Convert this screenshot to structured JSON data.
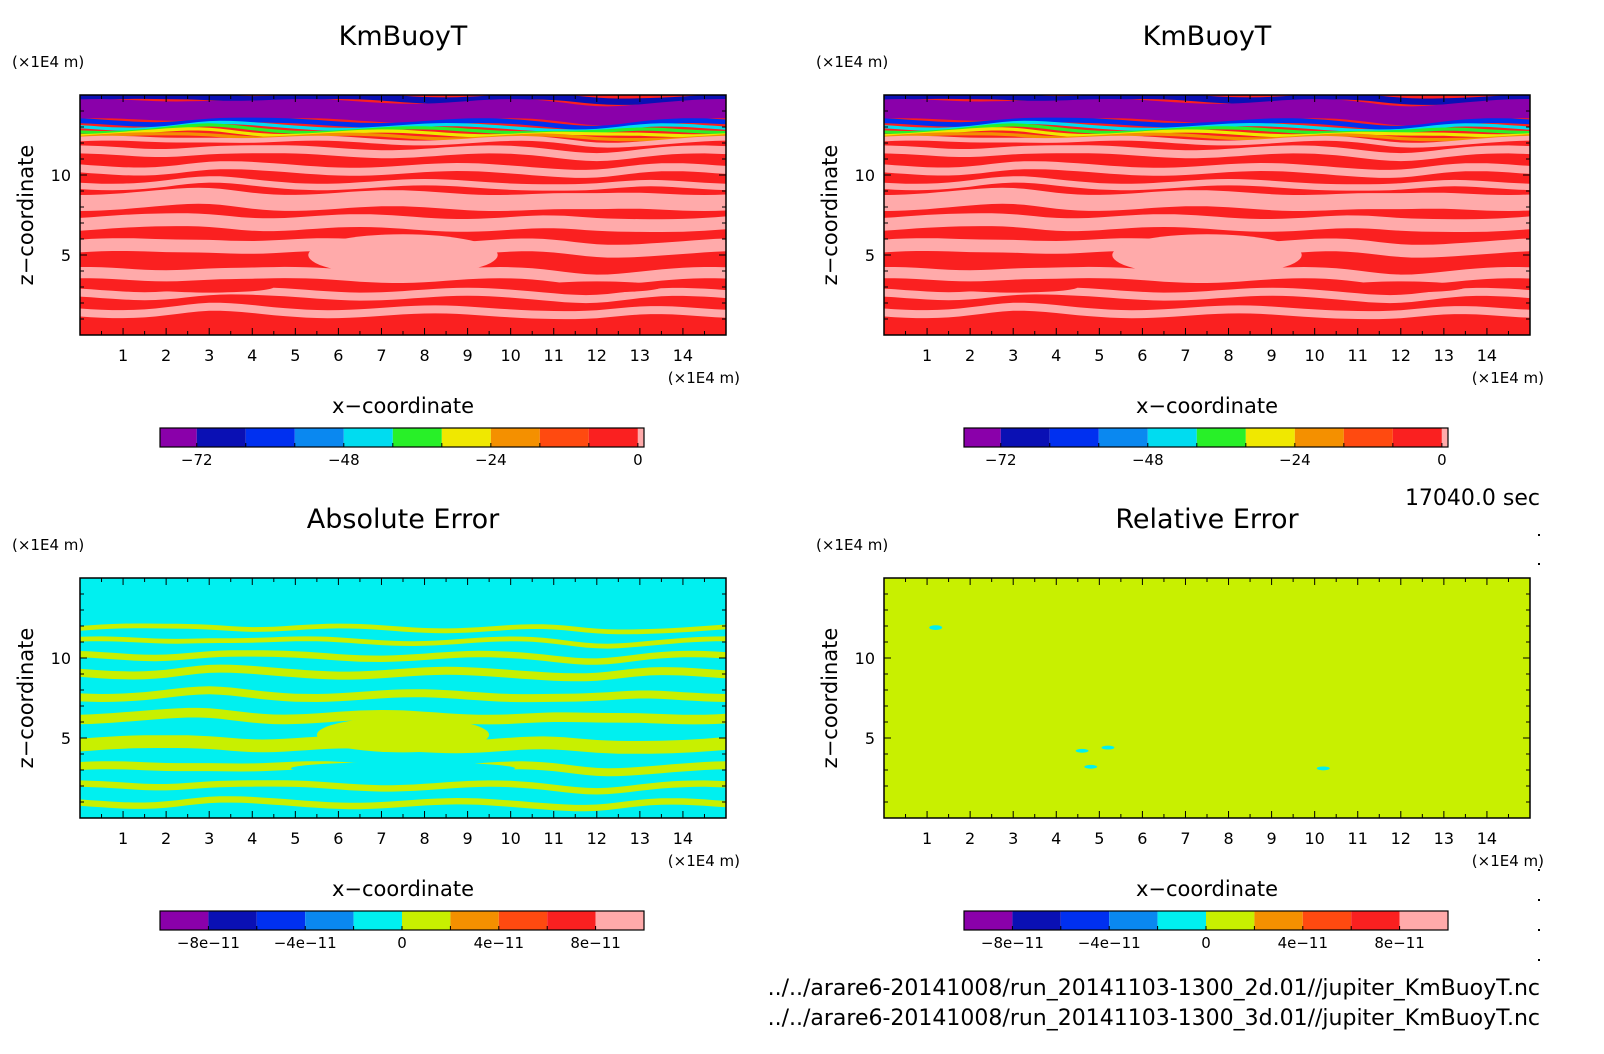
{
  "chart_data": [
    {
      "type": "heatmap",
      "title": "KmBuoyT",
      "xlabel": "x−coordinate",
      "ylabel": "z−coordinate",
      "x_unit": "(×1E4 m)",
      "y_unit": "(×1E4 m)",
      "xlim": [
        0,
        15
      ],
      "ylim": [
        0,
        15
      ],
      "x_ticks": [
        "1",
        "2",
        "3",
        "4",
        "5",
        "6",
        "7",
        "8",
        "9",
        "10",
        "11",
        "12",
        "13",
        "14"
      ],
      "y_ticks": [
        "5",
        "10"
      ],
      "colorbar": {
        "ticks": [
          "−72",
          "−48",
          "−24",
          "0"
        ],
        "tick_values": [
          -72,
          -48,
          -24,
          0
        ],
        "range": [
          -78,
          1
        ],
        "levels": [
          -78,
          -72,
          -64,
          -56,
          -48,
          -40,
          -32,
          -24,
          -16,
          -8,
          0,
          1
        ],
        "colors": [
          "#8a00aa",
          "#0a10b4",
          "#0030f0",
          "#0a88f0",
          "#00dcf0",
          "#28f028",
          "#f0e800",
          "#f49000",
          "#ff4a10",
          "#fa2020",
          "#ffaaaa"
        ]
      },
      "bands": [
        {
          "z": [
            14.6,
            15.0
          ],
          "color": "#0a10b4"
        },
        {
          "z": [
            13.4,
            14.6
          ],
          "color": "#8a00aa"
        },
        {
          "z": [
            13.1,
            13.4
          ],
          "color": "#0030f0"
        },
        {
          "z": [
            12.9,
            13.1
          ],
          "color": "#00dcf0"
        },
        {
          "z": [
            12.7,
            12.9
          ],
          "color": "#28f028"
        },
        {
          "z": [
            12.5,
            12.7
          ],
          "color": "#f0e800"
        },
        {
          "z": [
            12.3,
            12.5
          ],
          "color": "#f49000"
        },
        {
          "z": [
            12.0,
            12.3
          ],
          "color": "#ffaaaa"
        },
        {
          "z": [
            11.2,
            11.7
          ],
          "color": "#ffaaaa"
        },
        {
          "z": [
            10.1,
            10.6
          ],
          "color": "#ffaaaa"
        },
        {
          "z": [
            9.2,
            9.6
          ],
          "color": "#ffaaaa"
        },
        {
          "z": [
            7.9,
            8.9
          ],
          "color": "#ffaaaa"
        },
        {
          "z": [
            6.6,
            7.4
          ],
          "color": "#ffaaaa"
        },
        {
          "z": [
            5.1,
            5.9
          ],
          "color": "#ffaaaa"
        },
        {
          "z": [
            3.4,
            4.1
          ],
          "color": "#ffaaaa"
        },
        {
          "z": [
            2.3,
            2.8
          ],
          "color": "#ffaaaa"
        },
        {
          "z": [
            1.2,
            1.7
          ],
          "color": "#ffaaaa"
        }
      ],
      "blobs": [
        {
          "x": 7.5,
          "z": 5.0,
          "dx": 2.2,
          "dz": 1.3,
          "color": "#ffaaaa"
        },
        {
          "x": 3.0,
          "z": 3.0,
          "dx": 1.5,
          "dz": 0.35,
          "color": "#fa2020"
        },
        {
          "x": 12.0,
          "z": 3.0,
          "dx": 1.5,
          "dz": 0.35,
          "color": "#fa2020"
        }
      ],
      "base_color": "#fa2020"
    },
    {
      "type": "heatmap",
      "title": "KmBuoyT",
      "xlabel": "x−coordinate",
      "ylabel": "z−coordinate",
      "x_unit": "(×1E4 m)",
      "y_unit": "(×1E4 m)",
      "xlim": [
        0,
        15
      ],
      "ylim": [
        0,
        15
      ],
      "x_ticks": [
        "1",
        "2",
        "3",
        "4",
        "5",
        "6",
        "7",
        "8",
        "9",
        "10",
        "11",
        "12",
        "13",
        "14"
      ],
      "y_ticks": [
        "5",
        "10"
      ],
      "colorbar": {
        "ticks": [
          "−72",
          "−48",
          "−24",
          "0"
        ],
        "tick_values": [
          -72,
          -48,
          -24,
          0
        ],
        "range": [
          -78,
          1
        ],
        "levels": [
          -78,
          -72,
          -64,
          -56,
          -48,
          -40,
          -32,
          -24,
          -16,
          -8,
          0,
          1
        ],
        "colors": [
          "#8a00aa",
          "#0a10b4",
          "#0030f0",
          "#0a88f0",
          "#00dcf0",
          "#28f028",
          "#f0e800",
          "#f49000",
          "#ff4a10",
          "#fa2020",
          "#ffaaaa"
        ]
      },
      "bands": [
        {
          "z": [
            14.6,
            15.0
          ],
          "color": "#0a10b4"
        },
        {
          "z": [
            13.4,
            14.6
          ],
          "color": "#8a00aa"
        },
        {
          "z": [
            13.1,
            13.4
          ],
          "color": "#0030f0"
        },
        {
          "z": [
            12.9,
            13.1
          ],
          "color": "#00dcf0"
        },
        {
          "z": [
            12.7,
            12.9
          ],
          "color": "#28f028"
        },
        {
          "z": [
            12.5,
            12.7
          ],
          "color": "#f0e800"
        },
        {
          "z": [
            12.3,
            12.5
          ],
          "color": "#f49000"
        },
        {
          "z": [
            12.0,
            12.3
          ],
          "color": "#ffaaaa"
        },
        {
          "z": [
            11.2,
            11.7
          ],
          "color": "#ffaaaa"
        },
        {
          "z": [
            10.1,
            10.6
          ],
          "color": "#ffaaaa"
        },
        {
          "z": [
            9.2,
            9.6
          ],
          "color": "#ffaaaa"
        },
        {
          "z": [
            7.9,
            8.9
          ],
          "color": "#ffaaaa"
        },
        {
          "z": [
            6.6,
            7.4
          ],
          "color": "#ffaaaa"
        },
        {
          "z": [
            5.1,
            5.9
          ],
          "color": "#ffaaaa"
        },
        {
          "z": [
            3.4,
            4.1
          ],
          "color": "#ffaaaa"
        },
        {
          "z": [
            2.3,
            2.8
          ],
          "color": "#ffaaaa"
        },
        {
          "z": [
            1.2,
            1.7
          ],
          "color": "#ffaaaa"
        }
      ],
      "blobs": [
        {
          "x": 7.5,
          "z": 5.0,
          "dx": 2.2,
          "dz": 1.3,
          "color": "#ffaaaa"
        },
        {
          "x": 3.0,
          "z": 3.0,
          "dx": 1.5,
          "dz": 0.35,
          "color": "#fa2020"
        },
        {
          "x": 12.0,
          "z": 3.0,
          "dx": 1.5,
          "dz": 0.35,
          "color": "#fa2020"
        }
      ],
      "base_color": "#fa2020"
    },
    {
      "type": "heatmap",
      "title": "Absolute Error",
      "xlabel": "x−coordinate",
      "ylabel": "z−coordinate",
      "x_unit": "(×1E4 m)",
      "y_unit": "(×1E4 m)",
      "xlim": [
        0,
        15
      ],
      "ylim": [
        0,
        15
      ],
      "x_ticks": [
        "1",
        "2",
        "3",
        "4",
        "5",
        "6",
        "7",
        "8",
        "9",
        "10",
        "11",
        "12",
        "13",
        "14"
      ],
      "y_ticks": [
        "5",
        "10"
      ],
      "colorbar": {
        "ticks": [
          "−8e−11",
          "−4e−11",
          "0",
          "4e−11",
          "8e−11"
        ],
        "tick_values": [
          -8e-11,
          -4e-11,
          0,
          4e-11,
          8e-11
        ],
        "range": [
          -1e-10,
          1e-10
        ],
        "levels": [
          -1e-10,
          -8e-11,
          -6e-11,
          -4e-11,
          -2e-11,
          0,
          2e-11,
          4e-11,
          6e-11,
          8e-11,
          1e-10
        ],
        "colors": [
          "#8a00aa",
          "#0a10b4",
          "#0030f0",
          "#0a88f0",
          "#00f0f0",
          "#c8f000",
          "#f49000",
          "#ff4a10",
          "#fa2020",
          "#ffaaaa"
        ]
      },
      "bands": [
        {
          "z": [
            11.7,
            12.0
          ],
          "color": "#c8f000"
        },
        {
          "z": [
            10.9,
            11.2
          ],
          "color": "#c8f000"
        },
        {
          "z": [
            9.9,
            10.3
          ],
          "color": "#c8f000"
        },
        {
          "z": [
            8.8,
            9.3
          ],
          "color": "#c8f000"
        },
        {
          "z": [
            7.4,
            7.9
          ],
          "color": "#c8f000"
        },
        {
          "z": [
            6.0,
            6.6
          ],
          "color": "#c8f000"
        },
        {
          "z": [
            4.2,
            5.0
          ],
          "color": "#c8f000"
        },
        {
          "z": [
            2.9,
            3.4
          ],
          "color": "#c8f000"
        },
        {
          "z": [
            1.8,
            2.2
          ],
          "color": "#c8f000"
        },
        {
          "z": [
            0.7,
            1.1
          ],
          "color": "#c8f000"
        }
      ],
      "blobs": [
        {
          "x": 7.5,
          "z": 5.2,
          "dx": 2.0,
          "dz": 1.1,
          "color": "#c8f000"
        },
        {
          "x": 7.5,
          "z": 3.1,
          "dx": 2.6,
          "dz": 0.4,
          "color": "#00f0f0"
        }
      ],
      "base_color": "#00f0f0"
    },
    {
      "type": "heatmap",
      "title": "Relative Error",
      "xlabel": "x−coordinate",
      "ylabel": "z−coordinate",
      "x_unit": "(×1E4 m)",
      "y_unit": "(×1E4 m)",
      "xlim": [
        0,
        15
      ],
      "ylim": [
        0,
        15
      ],
      "x_ticks": [
        "1",
        "2",
        "3",
        "4",
        "5",
        "6",
        "7",
        "8",
        "9",
        "10",
        "11",
        "12",
        "13",
        "14"
      ],
      "y_ticks": [
        "5",
        "10"
      ],
      "colorbar": {
        "ticks": [
          "−8e−11",
          "−4e−11",
          "0",
          "4e−11",
          "8e−11"
        ],
        "tick_values": [
          -8e-11,
          -4e-11,
          0,
          4e-11,
          8e-11
        ],
        "range": [
          -1e-10,
          1e-10
        ],
        "levels": [
          -1e-10,
          -8e-11,
          -6e-11,
          -4e-11,
          -2e-11,
          0,
          2e-11,
          4e-11,
          6e-11,
          8e-11,
          1e-10
        ],
        "colors": [
          "#8a00aa",
          "#0a10b4",
          "#0030f0",
          "#0a88f0",
          "#00f0f0",
          "#c8f000",
          "#f49000",
          "#ff4a10",
          "#fa2020",
          "#ffaaaa"
        ]
      },
      "bands": [],
      "blobs": [
        {
          "x": 1.2,
          "z": 11.9,
          "dx": 0.15,
          "dz": 0.15,
          "color": "#00f0f0"
        },
        {
          "x": 4.6,
          "z": 4.2,
          "dx": 0.15,
          "dz": 0.12,
          "color": "#00f0f0"
        },
        {
          "x": 5.2,
          "z": 4.4,
          "dx": 0.15,
          "dz": 0.12,
          "color": "#00f0f0"
        },
        {
          "x": 4.8,
          "z": 3.2,
          "dx": 0.15,
          "dz": 0.12,
          "color": "#00f0f0"
        },
        {
          "x": 10.2,
          "z": 3.1,
          "dx": 0.15,
          "dz": 0.12,
          "color": "#00f0f0"
        }
      ],
      "base_color": "#c8f000"
    }
  ],
  "footer": {
    "time": "17040.0 sec",
    "files": [
      "../../arare6-20141008/run_20141103-1300_2d.01//jupiter_KmBuoyT.nc",
      "../../arare6-20141008/run_20141103-1300_3d.01//jupiter_KmBuoyT.nc"
    ]
  }
}
